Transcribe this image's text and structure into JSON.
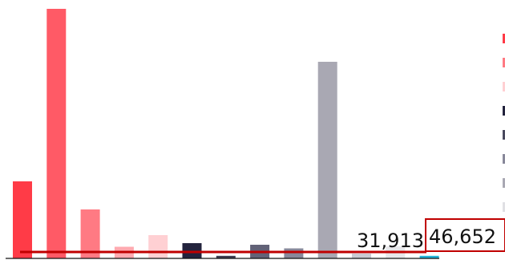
{
  "chart_data": {
    "type": "bar",
    "title": "",
    "xlabel": "",
    "ylabel": "",
    "ylim": [
      0,
      312000
    ],
    "values": [
      96000,
      311000,
      61000,
      14500,
      29000,
      19000,
      3200,
      17000,
      12500,
      245000,
      6000,
      15000,
      3200
    ],
    "colors": [
      "#ff3b47",
      "#ff5a66",
      "#ff7a83",
      "#ffaab0",
      "#ffd0d3",
      "#23233d",
      "#3b3b4f",
      "#626277",
      "#88889a",
      "#a9a8b3",
      "#cacad2",
      "#e7e7ea",
      "#22b3d9"
    ],
    "legend_colors": [
      "#ff3b47",
      "#ff7a83",
      "#ffd0d3",
      "#23233d",
      "#4a4a5e",
      "#88889a",
      "#a9a8b3",
      "#e0e0e4"
    ],
    "legend_placement": "right",
    "grid": false,
    "reference_line": {
      "value": 8000,
      "color": "#c00000",
      "label_left": "31,913",
      "label_right": "46,652"
    }
  }
}
